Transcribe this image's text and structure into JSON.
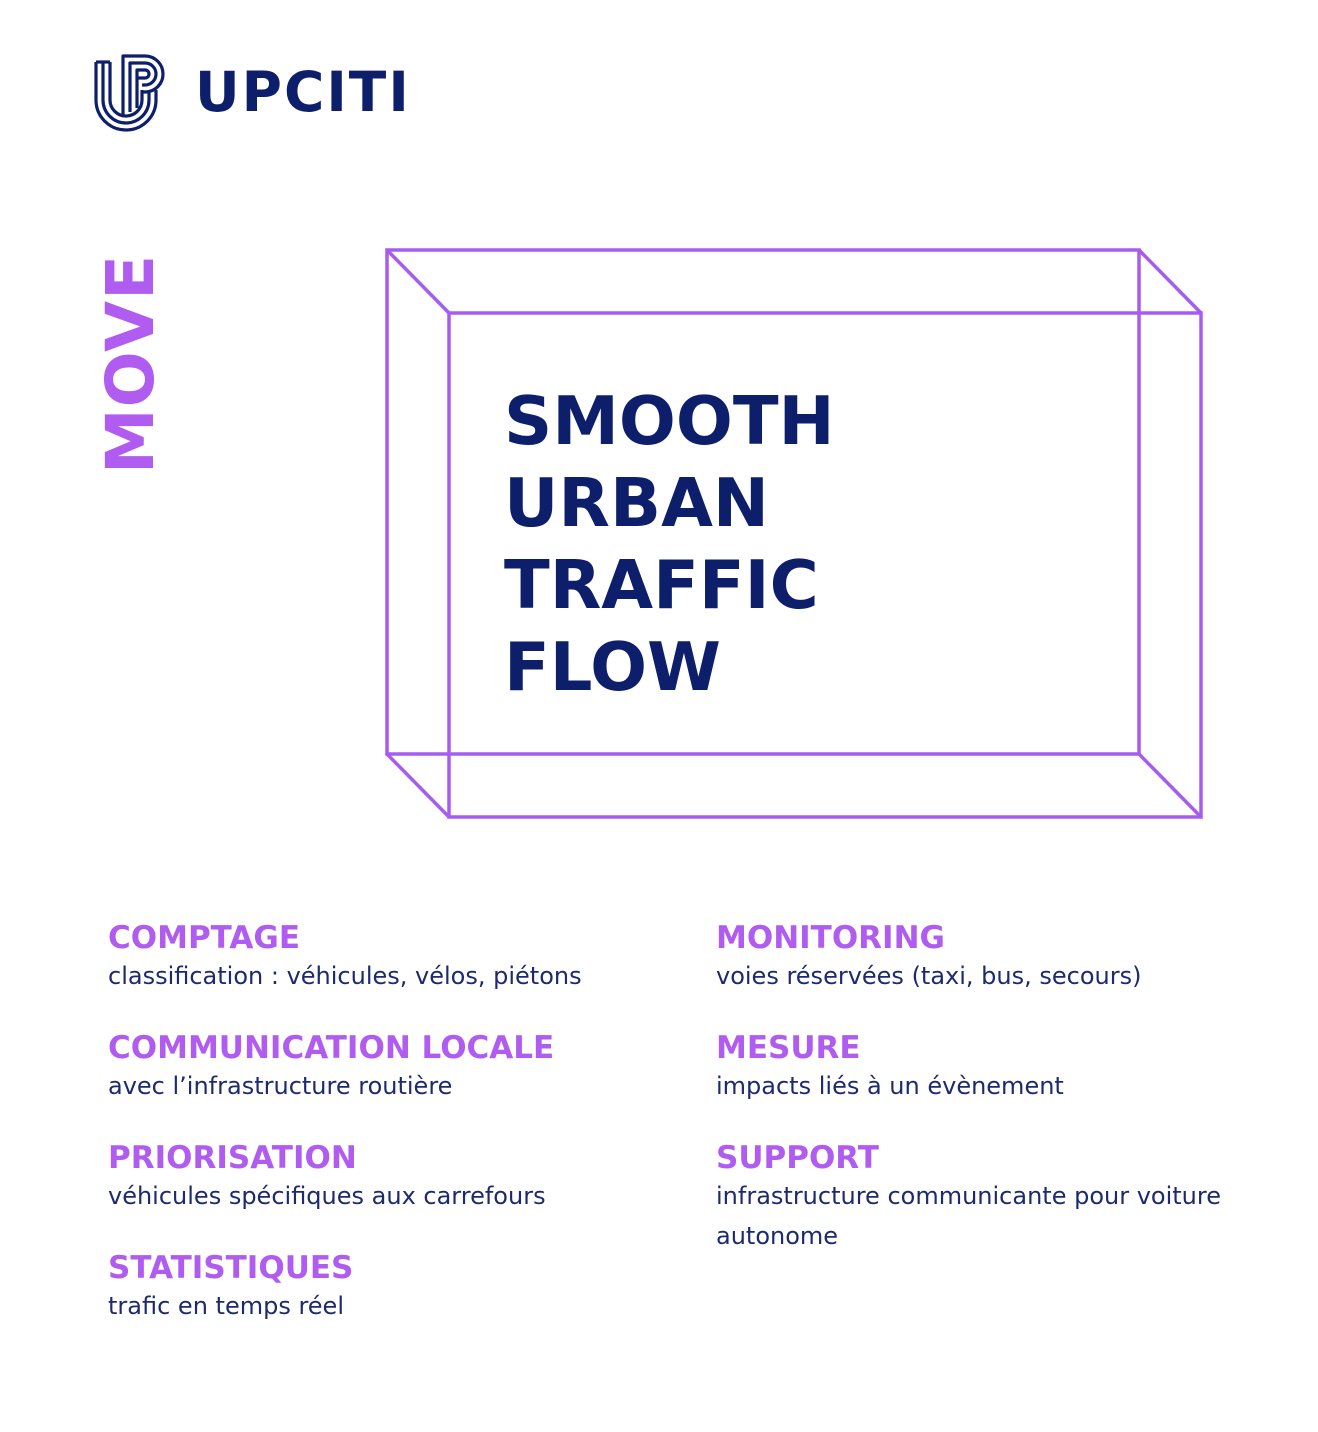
{
  "brand": {
    "name": "UPCITI",
    "logo_icon": "up-monogram-icon",
    "color_navy": "#0d1f6b",
    "color_purple": "#b05cf0"
  },
  "section_label": "MOVE",
  "headline": {
    "line1": "SMOOTH",
    "line2": "URBAN",
    "line3": "TRAFFIC",
    "line4": "FLOW"
  },
  "features_left": [
    {
      "title": "COMPTAGE",
      "desc": "classification : véhicules, vélos, piétons"
    },
    {
      "title": "COMMUNICATION LOCALE",
      "desc": "avec l’infrastructure routière"
    },
    {
      "title": "PRIORISATION",
      "desc": "véhicules spécifiques aux carrefours"
    },
    {
      "title": "STATISTIQUES",
      "desc": "trafic en temps réel"
    }
  ],
  "features_right": [
    {
      "title": "MONITORING",
      "desc": "voies réservées (taxi, bus, secours)"
    },
    {
      "title": "MESURE",
      "desc": "impacts liés à un évènement"
    },
    {
      "title": "SUPPORT",
      "desc": "infrastructure communicante pour voiture autonome"
    }
  ]
}
